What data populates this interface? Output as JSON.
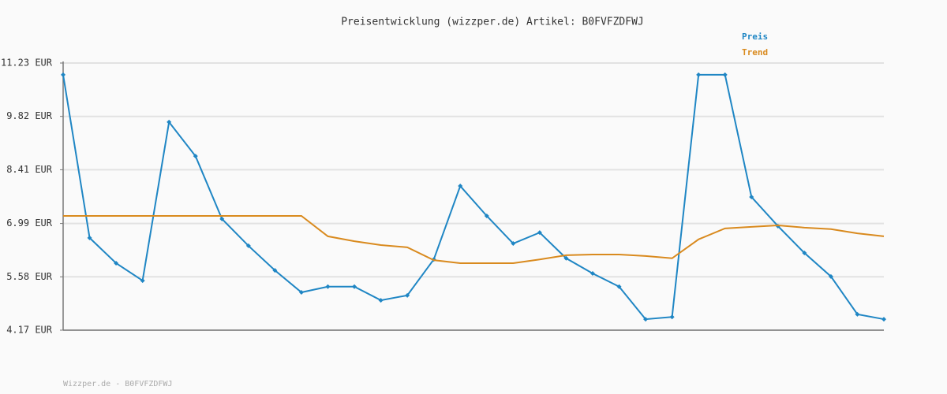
{
  "chart_data": {
    "type": "line",
    "title": "Preisentwicklung (wizzper.de) Artikel: B0FVFZDFWJ",
    "footer": "Wizzper.de - B0FVFZDFWJ",
    "categories": [
      null,
      null,
      null,
      null,
      null,
      null,
      null,
      null,
      null,
      null,
      null,
      null,
      null,
      null,
      null,
      null,
      null,
      null,
      null,
      null,
      null,
      null,
      null,
      null,
      null,
      null,
      null,
      null,
      null,
      null,
      null,
      null
    ],
    "series": [
      {
        "name": "Preis",
        "color": "#1f86c4",
        "markers": true,
        "values": [
          10.92,
          6.61,
          5.94,
          5.48,
          9.67,
          8.77,
          7.11,
          6.4,
          5.75,
          5.17,
          5.32,
          5.32,
          4.96,
          5.09,
          6.04,
          7.98,
          7.19,
          6.46,
          6.75,
          6.07,
          5.67,
          5.32,
          4.46,
          4.52,
          10.92,
          10.92,
          7.69,
          6.92,
          6.21,
          5.59,
          4.59,
          4.46
        ]
      },
      {
        "name": "Trend",
        "color": "#d98a1e",
        "markers": false,
        "values": [
          7.19,
          7.19,
          7.19,
          7.19,
          7.19,
          7.19,
          7.19,
          7.19,
          7.19,
          7.19,
          6.65,
          6.52,
          6.42,
          6.36,
          6.02,
          5.94,
          5.94,
          5.94,
          6.04,
          6.15,
          6.17,
          6.17,
          6.13,
          6.07,
          6.57,
          6.86,
          6.9,
          6.94,
          6.88,
          6.84,
          6.73,
          6.65
        ]
      }
    ],
    "ylim": [
      4.17,
      11.23
    ],
    "yticks": [
      {
        "value": 4.17,
        "label": "4.17 EUR"
      },
      {
        "value": 5.58,
        "label": "5.58 EUR"
      },
      {
        "value": 6.99,
        "label": "6.99 EUR"
      },
      {
        "value": 8.41,
        "label": "8.41 EUR"
      },
      {
        "value": 9.82,
        "label": "9.82 EUR"
      },
      {
        "value": 11.23,
        "label": "11.23 EUR"
      }
    ],
    "grid": true
  }
}
